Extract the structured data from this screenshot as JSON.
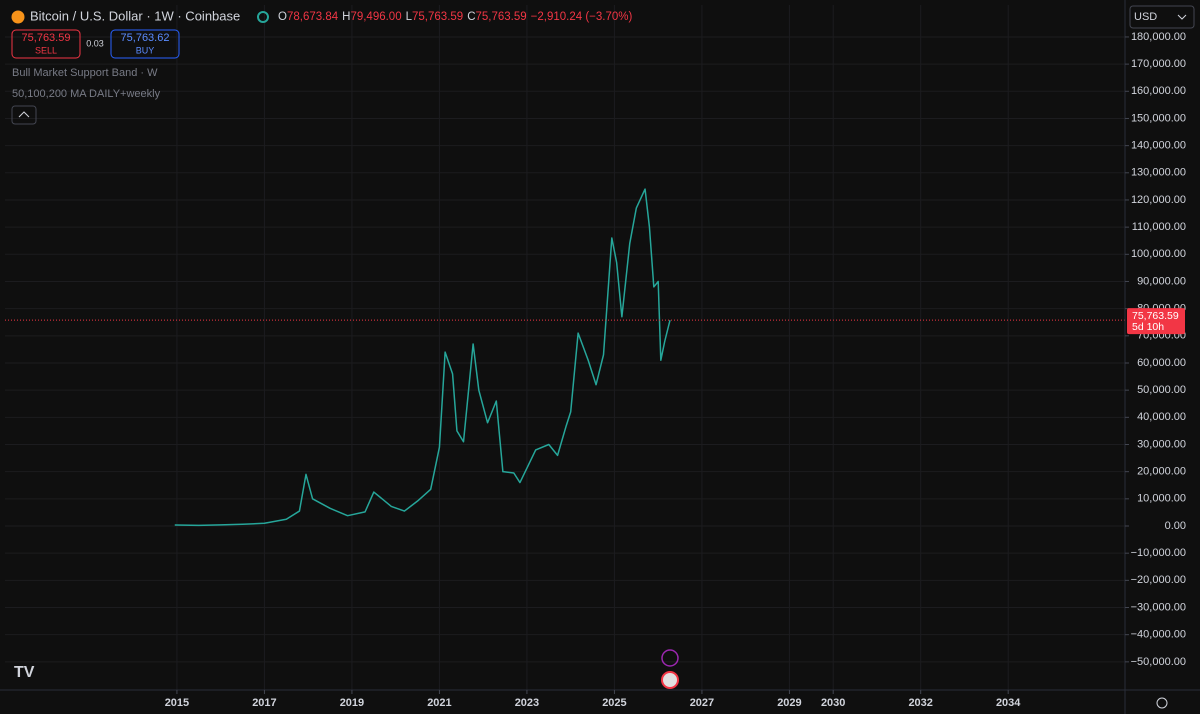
{
  "chart_data": {
    "type": "line",
    "title": "Bitcoin / U.S. Dollar · 1W · Coinbase",
    "ohlc": [
      {
        "key": "O",
        "value": "78,673.84"
      },
      {
        "key": "H",
        "value": "79,496.00"
      },
      {
        "key": "L",
        "value": "75,763.59"
      },
      {
        "key": "C",
        "value": "75,763.59"
      }
    ],
    "change": "−2,910.24 (−3.70%)",
    "sell": {
      "price": "75,763.59",
      "label": "SELL"
    },
    "spread": "0.03",
    "buy": {
      "price": "75,763.62",
      "label": "BUY"
    },
    "indicators": [
      "Bull Market Support Band · W",
      "50,100,200 MA DAILY+weekly"
    ],
    "currency": "USD",
    "x": [
      2014.95,
      2015.5,
      2016.0,
      2016.5,
      2017.0,
      2017.5,
      2017.8,
      2017.95,
      2018.1,
      2018.5,
      2018.9,
      2019.3,
      2019.5,
      2019.9,
      2020.2,
      2020.5,
      2020.8,
      2021.0,
      2021.13,
      2021.3,
      2021.4,
      2021.55,
      2021.77,
      2021.9,
      2022.1,
      2022.3,
      2022.45,
      2022.7,
      2022.84,
      2023.05,
      2023.2,
      2023.5,
      2023.7,
      2023.9,
      2024.0,
      2024.17,
      2024.4,
      2024.58,
      2024.75,
      2024.94,
      2025.05,
      2025.17,
      2025.35,
      2025.5,
      2025.7,
      2025.8,
      2025.9,
      2026.0,
      2026.06,
      2026.15,
      2026.27
    ],
    "series": [
      {
        "name": "BTCUSD",
        "color": "#26a69a",
        "values": [
          350,
          250,
          430,
          650,
          1000,
          2500,
          5500,
          19000,
          10000,
          6500,
          3800,
          5200,
          12500,
          7200,
          5500,
          9200,
          13500,
          29000,
          64000,
          56000,
          35000,
          31000,
          67000,
          50000,
          38000,
          46000,
          20000,
          19500,
          16000,
          23000,
          28000,
          30000,
          26000,
          37000,
          42000,
          71000,
          61000,
          52000,
          63000,
          106000,
          97000,
          77000,
          104000,
          117000,
          124000,
          110000,
          88000,
          90000,
          61000,
          68000,
          75763.59
        ]
      }
    ],
    "price_line": {
      "value": 75763.59,
      "label": "75,763.59",
      "countdown": "5d 10h",
      "color": "#f23645"
    },
    "xlim": [
      2011.07,
      2036.67
    ],
    "xticks": [
      2015,
      2017,
      2019,
      2021,
      2023,
      2025,
      2027,
      2029,
      2030,
      2032,
      2034
    ],
    "ylim": [
      -60360,
      191760
    ],
    "yticks": [
      {
        "value": -50000,
        "label": "−50,000.00"
      },
      {
        "value": -40000,
        "label": "−40,000.00"
      },
      {
        "value": -30000,
        "label": "−30,000.00"
      },
      {
        "value": -20000,
        "label": "−20,000.00"
      },
      {
        "value": -10000,
        "label": "−10,000.00"
      },
      {
        "value": 0,
        "label": "0.00"
      },
      {
        "value": 10000,
        "label": "10,000.00"
      },
      {
        "value": 20000,
        "label": "20,000.00"
      },
      {
        "value": 30000,
        "label": "30,000.00"
      },
      {
        "value": 40000,
        "label": "40,000.00"
      },
      {
        "value": 50000,
        "label": "50,000.00"
      },
      {
        "value": 60000,
        "label": "60,000.00"
      },
      {
        "value": 70000,
        "label": "70,000.00"
      },
      {
        "value": 80000,
        "label": "80,000.00"
      },
      {
        "value": 90000,
        "label": "90,000.00"
      },
      {
        "value": 100000,
        "label": "100,000.00"
      },
      {
        "value": 110000,
        "label": "110,000.00"
      },
      {
        "value": 120000,
        "label": "120,000.00"
      },
      {
        "value": 130000,
        "label": "130,000.00"
      },
      {
        "value": 140000,
        "label": "140,000.00"
      },
      {
        "value": 150000,
        "label": "150,000.00"
      },
      {
        "value": 160000,
        "label": "160,000.00"
      },
      {
        "value": 170000,
        "label": "170,000.00"
      },
      {
        "value": 180000,
        "label": "180,000.00"
      }
    ],
    "grid": true
  }
}
